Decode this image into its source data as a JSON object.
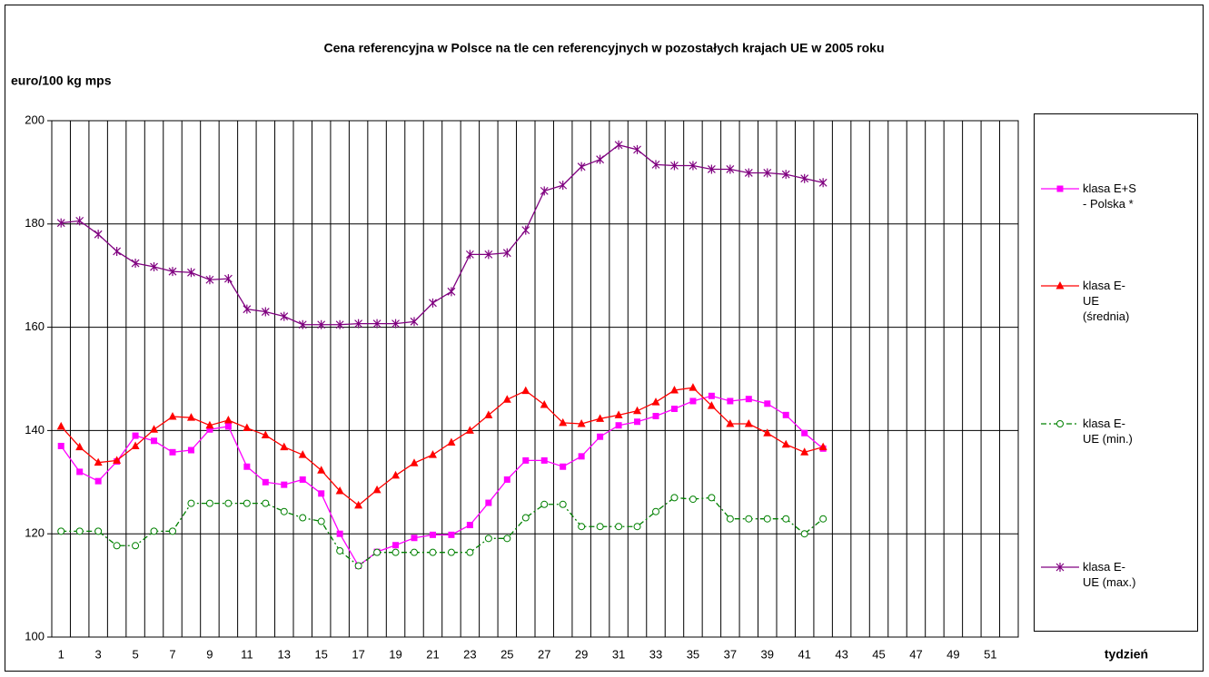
{
  "chart_data": {
    "type": "line",
    "title": "Cena referencyjna w Polsce na tle cen referencyjnych w pozostałych krajach UE w 2005 roku",
    "y_label": "euro/100 kg mps",
    "x_label": "tydzień",
    "x": [
      1,
      2,
      3,
      4,
      5,
      6,
      7,
      8,
      9,
      10,
      11,
      12,
      13,
      14,
      15,
      16,
      17,
      18,
      19,
      20,
      21,
      22,
      23,
      24,
      25,
      26,
      27,
      28,
      29,
      30,
      31,
      32,
      33,
      34,
      35,
      36,
      37,
      38,
      39,
      40,
      41,
      42,
      43,
      44,
      45,
      46,
      47,
      48,
      49,
      50,
      51,
      52
    ],
    "xlim": [
      0.5,
      52.5
    ],
    "xticks": [
      1,
      3,
      5,
      7,
      9,
      11,
      13,
      15,
      17,
      19,
      21,
      23,
      25,
      27,
      29,
      31,
      33,
      35,
      37,
      39,
      41,
      43,
      45,
      47,
      49,
      51
    ],
    "ylim": [
      100,
      200
    ],
    "yticks": [
      100,
      120,
      140,
      160,
      180,
      200
    ],
    "grid": true,
    "legend": "right",
    "series": [
      {
        "name": "klasa E+S - Polska *",
        "color": "#ff00ff",
        "marker": "square",
        "dash": "solid",
        "values": [
          137,
          132,
          130.2,
          134,
          139,
          138,
          135.8,
          136.2,
          140.2,
          140.8,
          133,
          130,
          129.5,
          130.5,
          127.8,
          120,
          113.8,
          116.5,
          117.8,
          119.2,
          119.8,
          119.8,
          121.7,
          126,
          130.5,
          134.2,
          134.2,
          133,
          135,
          138.8,
          141,
          141.7,
          142.8,
          144.2,
          145.7,
          146.7,
          145.7,
          146.1,
          145.2,
          143,
          139.5,
          136.5,
          null,
          null,
          null,
          null,
          null,
          null,
          null,
          null,
          null,
          null
        ]
      },
      {
        "name": "klasa E- UE (średnia)",
        "color": "#ff0000",
        "marker": "triangle",
        "dash": "solid",
        "values": [
          140.8,
          136.8,
          133.8,
          134.2,
          137,
          140.2,
          142.7,
          142.5,
          141,
          142,
          140.5,
          139.1,
          136.8,
          135.3,
          132.3,
          128.3,
          125.5,
          128.5,
          131.3,
          133.7,
          135.3,
          137.7,
          140,
          143,
          146,
          147.7,
          145,
          141.5,
          141.3,
          142.3,
          143,
          143.8,
          145.5,
          147.8,
          148.3,
          144.8,
          141.3,
          141.3,
          139.5,
          137.3,
          135.8,
          136.8,
          null,
          null,
          null,
          null,
          null,
          null,
          null,
          null,
          null,
          null
        ]
      },
      {
        "name": "klasa E- UE (min.)",
        "color": "#008000",
        "marker": "circle",
        "dash": "dashdot",
        "values": [
          120.5,
          120.5,
          120.5,
          117.7,
          117.7,
          120.5,
          120.5,
          125.9,
          125.9,
          125.9,
          125.9,
          125.9,
          124.3,
          123.1,
          122.4,
          116.7,
          113.8,
          116.4,
          116.4,
          116.4,
          116.4,
          116.4,
          116.4,
          119.1,
          119.1,
          123.1,
          125.7,
          125.7,
          121.4,
          121.4,
          121.4,
          121.4,
          124.3,
          127,
          126.7,
          127,
          122.9,
          122.9,
          122.9,
          122.9,
          120,
          122.9,
          null,
          null,
          null,
          null,
          null,
          null,
          null,
          null,
          null,
          null
        ]
      },
      {
        "name": "klasa E- UE (max.)",
        "color": "#800080",
        "marker": "asterisk",
        "dash": "solid",
        "values": [
          180.2,
          180.6,
          178,
          174.7,
          172.4,
          171.7,
          170.8,
          170.6,
          169.2,
          169.4,
          163.5,
          163,
          162.1,
          160.5,
          160.5,
          160.5,
          160.7,
          160.7,
          160.7,
          161.1,
          164.7,
          166.9,
          174.1,
          174.1,
          174.4,
          178.8,
          186.4,
          187.5,
          191.1,
          192.5,
          195.3,
          194.4,
          191.5,
          191.3,
          191.3,
          190.6,
          190.6,
          189.9,
          189.9,
          189.6,
          188.8,
          188,
          null,
          null,
          null,
          null,
          null,
          null,
          null,
          null,
          null,
          null
        ]
      }
    ]
  }
}
